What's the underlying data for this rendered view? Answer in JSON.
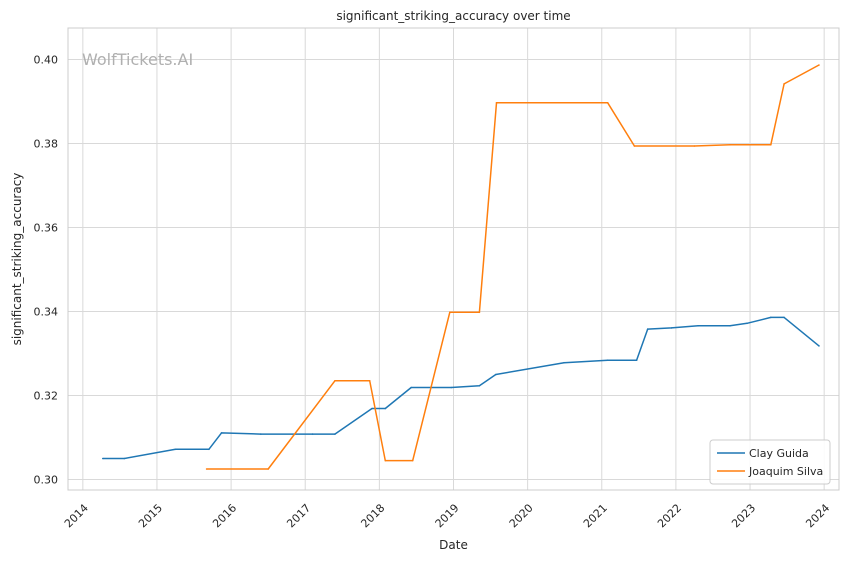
{
  "chart_data": {
    "type": "line",
    "title": "significant_striking_accuracy over time",
    "xlabel": "Date",
    "ylabel": "significant_striking_accuracy",
    "watermark": "WolfTickets.AI",
    "xlim": [
      2013.8,
      2024.2
    ],
    "ylim": [
      0.2975,
      0.4075
    ],
    "x_ticks": [
      2014,
      2015,
      2016,
      2017,
      2018,
      2019,
      2020,
      2021,
      2022,
      2023,
      2024
    ],
    "x_tick_labels": [
      "2014",
      "2015",
      "2016",
      "2017",
      "2018",
      "2019",
      "2020",
      "2021",
      "2022",
      "2023",
      "2024"
    ],
    "y_ticks": [
      0.3,
      0.32,
      0.34,
      0.36,
      0.38,
      0.4
    ],
    "y_tick_labels": [
      "0.30",
      "0.32",
      "0.34",
      "0.36",
      "0.38",
      "0.40"
    ],
    "grid": true,
    "legend_position": "bottom-right",
    "series": [
      {
        "name": "Clay Guida",
        "color": "#1f77b4",
        "x": [
          2014.27,
          2014.56,
          2015.25,
          2015.7,
          2015.87,
          2016.4,
          2017.1,
          2017.4,
          2017.9,
          2018.08,
          2018.43,
          2018.97,
          2019.35,
          2019.57,
          2020.49,
          2021.08,
          2021.47,
          2021.62,
          2021.94,
          2022.3,
          2022.73,
          2022.96,
          2023.28,
          2023.46,
          2023.93
        ],
        "y": [
          0.305,
          0.305,
          0.3072,
          0.3072,
          0.3111,
          0.3108,
          0.3108,
          0.3108,
          0.3169,
          0.3169,
          0.3219,
          0.3219,
          0.3223,
          0.325,
          0.3278,
          0.3284,
          0.3284,
          0.3358,
          0.3361,
          0.3366,
          0.3366,
          0.3372,
          0.3386,
          0.3386,
          0.3318
        ]
      },
      {
        "name": "Joaquim Silva",
        "color": "#ff7f0e",
        "x": [
          2015.67,
          2016.5,
          2017.4,
          2017.87,
          2018.08,
          2018.45,
          2018.95,
          2019.35,
          2019.58,
          2021.08,
          2021.44,
          2022.25,
          2022.73,
          2023.28,
          2023.46,
          2023.93
        ],
        "y": [
          0.3025,
          0.3025,
          0.3235,
          0.3235,
          0.3045,
          0.3045,
          0.3398,
          0.3398,
          0.3897,
          0.3897,
          0.3794,
          0.3794,
          0.3797,
          0.3797,
          0.3942,
          0.3987
        ]
      }
    ]
  }
}
